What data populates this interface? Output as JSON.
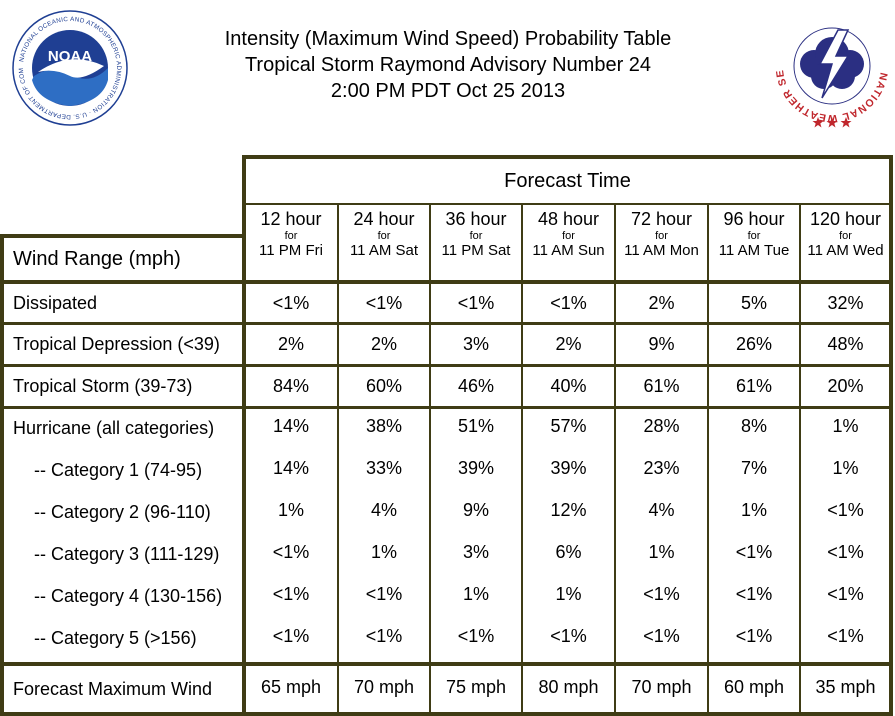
{
  "header": {
    "title_lines": [
      "Intensity (Maximum Wind Speed) Probability Table",
      "Tropical Storm Raymond Advisory Number 24",
      "2:00 PM PDT Oct 25 2013"
    ],
    "noaa_logo": {
      "center_text": "NOAA",
      "ring_text": "NATIONAL OCEANIC AND ATMOSPHERIC ADMINISTRATION · U.S. DEPARTMENT OF COMMERCE"
    },
    "nws_logo": {
      "ring_text": "NATIONAL WEATHER SERVICE"
    }
  },
  "table": {
    "forecast_time_label": "Forecast Time",
    "wind_range_label": "Wind Range (mph)",
    "columns": [
      {
        "hours": "12 hour",
        "for": "for",
        "time": "11 PM Fri"
      },
      {
        "hours": "24 hour",
        "for": "for",
        "time": "11 AM Sat"
      },
      {
        "hours": "36 hour",
        "for": "for",
        "time": "11 PM Sat"
      },
      {
        "hours": "48 hour",
        "for": "for",
        "time": "11 AM Sun"
      },
      {
        "hours": "72 hour",
        "for": "for",
        "time": "11 AM Mon"
      },
      {
        "hours": "96 hour",
        "for": "for",
        "time": "11 AM Tue"
      },
      {
        "hours": "120 hour",
        "for": "for",
        "time": "11 AM Wed"
      }
    ],
    "rows": [
      {
        "label": "Dissipated",
        "values": [
          "<1%",
          "<1%",
          "<1%",
          "<1%",
          "2%",
          "5%",
          "32%"
        ]
      },
      {
        "label": "Tropical Depression (<39)",
        "values": [
          "2%",
          "2%",
          "3%",
          "2%",
          "9%",
          "26%",
          "48%"
        ]
      },
      {
        "label": "Tropical Storm (39-73)",
        "values": [
          "84%",
          "60%",
          "46%",
          "40%",
          "61%",
          "61%",
          "20%"
        ]
      },
      {
        "label": "Hurricane (all categories)",
        "values": [
          "14%",
          "38%",
          "51%",
          "57%",
          "28%",
          "8%",
          "1%"
        ]
      },
      {
        "label": "-- Category 1 (74-95)",
        "values": [
          "14%",
          "33%",
          "39%",
          "39%",
          "23%",
          "7%",
          "1%"
        ]
      },
      {
        "label": "-- Category 2 (96-110)",
        "values": [
          "1%",
          "4%",
          "9%",
          "12%",
          "4%",
          "1%",
          "<1%"
        ]
      },
      {
        "label": "-- Category 3 (111-129)",
        "values": [
          "<1%",
          "1%",
          "3%",
          "6%",
          "1%",
          "<1%",
          "<1%"
        ]
      },
      {
        "label": "-- Category 4 (130-156)",
        "values": [
          "<1%",
          "<1%",
          "1%",
          "1%",
          "<1%",
          "<1%",
          "<1%"
        ]
      },
      {
        "label": "-- Category 5 (>156)",
        "values": [
          "<1%",
          "<1%",
          "<1%",
          "<1%",
          "<1%",
          "<1%",
          "<1%"
        ]
      }
    ],
    "max_wind": {
      "label": "Forecast Maximum Wind",
      "values": [
        "65 mph",
        "70 mph",
        "75 mph",
        "80 mph",
        "70 mph",
        "60 mph",
        "35 mph"
      ]
    }
  },
  "colors": {
    "grid_line": "#3f3c15",
    "noaa_blue": "#1f3f93",
    "noaa_sky": "#2e6ec4",
    "nws_red": "#c0272d",
    "nws_navy": "#2b2f82"
  }
}
